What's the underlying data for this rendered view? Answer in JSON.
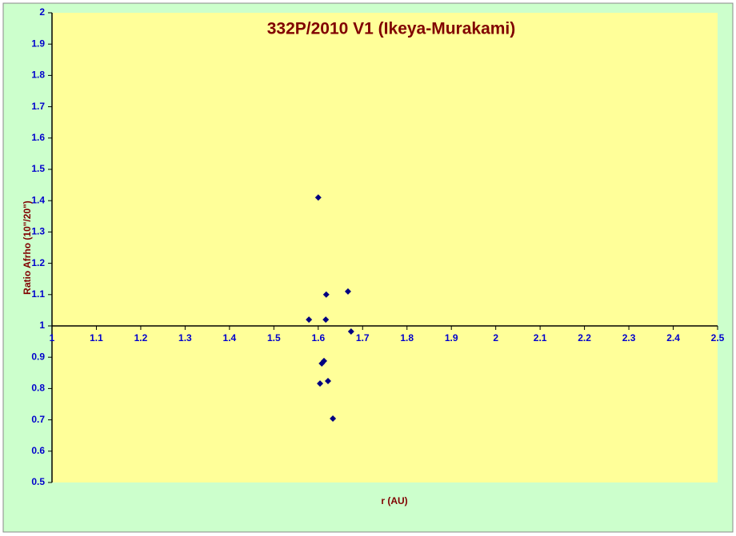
{
  "chart_data": {
    "type": "scatter",
    "title": "332P/2010 V1 (Ikeya-Murakami)",
    "x_label": "r (AU)",
    "y_label": "Ratio Afrho (10\"/20\")",
    "series": [
      {
        "name": "Ratio Afrho",
        "color": "#000080",
        "x": [
          1.6,
          1.618,
          1.667,
          1.579,
          1.617,
          1.674,
          1.613,
          1.608,
          1.622,
          1.604,
          1.633
        ],
        "values": [
          1.41,
          1.1,
          1.11,
          1.02,
          1.02,
          0.982,
          0.888,
          0.88,
          0.824,
          0.816,
          0.704
        ]
      }
    ],
    "xlim": [
      1,
      2.5
    ],
    "xticks": [
      1,
      1.1,
      1.2,
      1.3,
      1.4,
      1.5,
      1.6,
      1.7,
      1.8,
      1.9,
      2,
      2.1,
      2.2,
      2.3,
      2.4,
      2.5
    ],
    "ylim": [
      0.5,
      2
    ],
    "yticks": [
      0.5,
      0.6,
      0.7,
      0.8,
      0.9,
      1,
      1.1,
      1.2,
      1.3,
      1.4,
      1.5,
      1.6,
      1.7,
      1.8,
      1.9,
      2
    ],
    "xaxis_crosses_y": 1,
    "grid": false
  }
}
